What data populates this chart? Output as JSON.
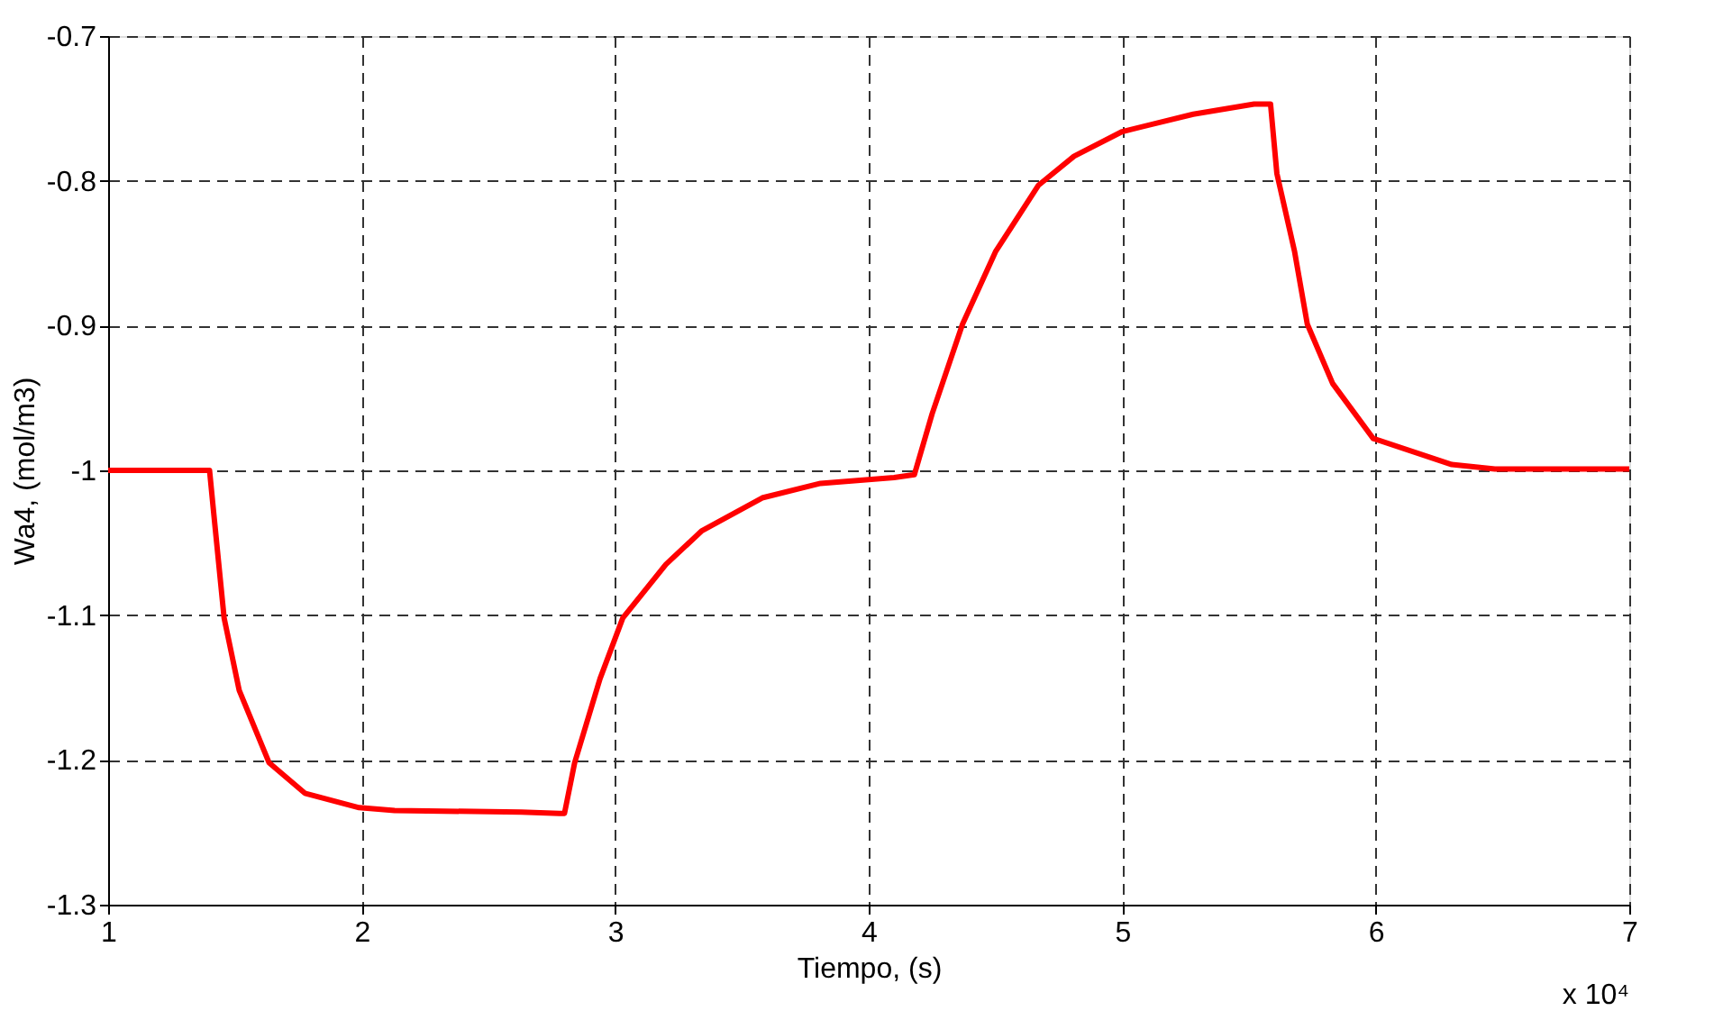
{
  "chart_data": {
    "type": "line",
    "xlabel": "Tiempo, (s)",
    "ylabel": "Wa4, (mol/m3)",
    "annotations": [
      "x 10⁴"
    ],
    "x": [
      1,
      1.4,
      1.415,
      1.4575,
      1.517,
      1.635,
      1.776,
      1.99,
      2.13,
      2.63,
      2.78,
      2.8,
      2.84,
      2.94,
      3.03,
      3.2,
      3.34,
      3.58,
      3.81,
      4.1,
      4.18,
      4.25,
      4.37,
      4.5,
      4.67,
      4.81,
      5.0,
      5.28,
      5.52,
      5.585,
      5.61,
      5.68,
      5.73,
      5.83,
      5.99,
      6.3,
      6.47,
      7
    ],
    "series": [
      {
        "color": "#ff0000",
        "values": [
          -1.0,
          -1.0,
          -1.027,
          -1.102,
          -1.152,
          -1.202,
          -1.223,
          -1.233,
          -1.235,
          -1.236,
          -1.237,
          -1.237,
          -1.202,
          -1.144,
          -1.102,
          -1.065,
          -1.042,
          -1.019,
          -1.009,
          -1.005,
          -1.003,
          -0.961,
          -0.899,
          -0.849,
          -0.803,
          -0.783,
          -0.766,
          -0.754,
          -0.747,
          -0.747,
          -0.795,
          -0.849,
          -0.899,
          -0.94,
          -0.978,
          -0.996,
          -0.999,
          -0.999
        ]
      }
    ],
    "xlim": [
      1,
      7
    ],
    "xticks": [
      1,
      2,
      3,
      4,
      5,
      6,
      7
    ],
    "ylim": [
      -1.3,
      -0.7
    ],
    "yticks": [
      -1.3,
      -1.2,
      -1.1,
      -1,
      -0.9,
      -0.8,
      -0.7
    ],
    "grid": true,
    "line_style": "solid",
    "marker": "none"
  }
}
